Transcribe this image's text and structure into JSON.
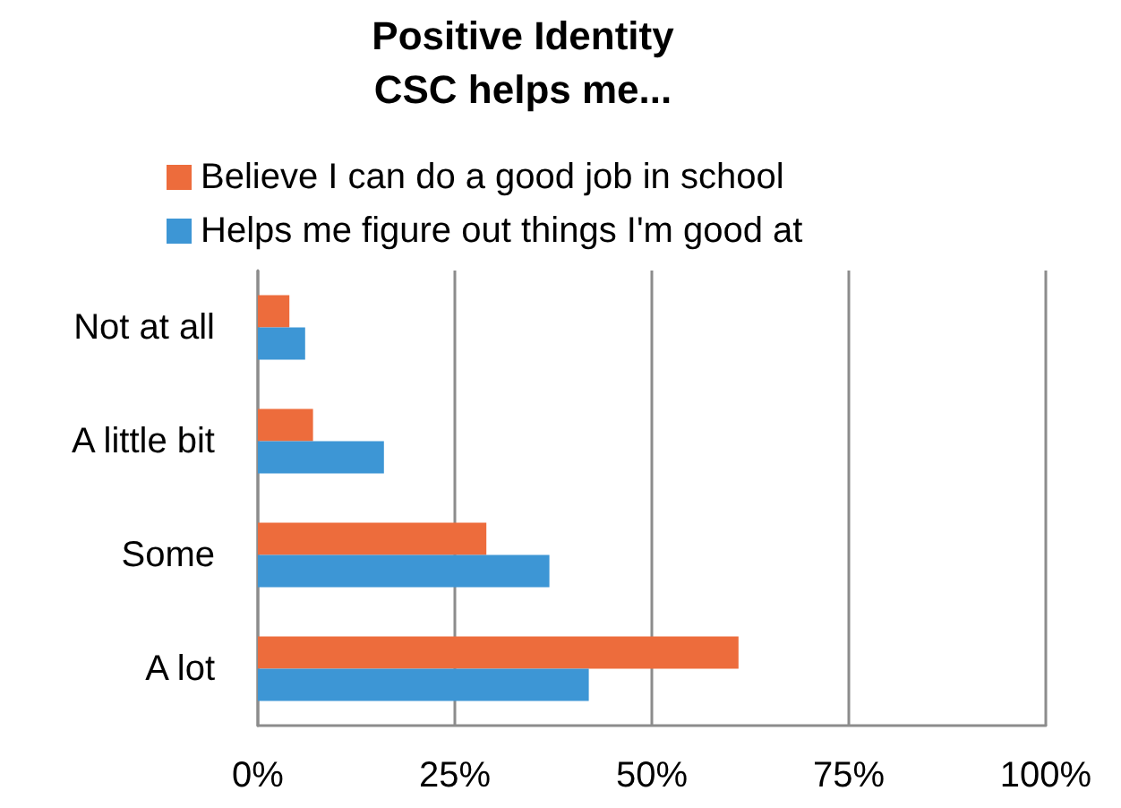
{
  "chart_data": {
    "type": "bar",
    "orientation": "horizontal",
    "title": "Positive Identity",
    "subtitle": "CSC helps me...",
    "categories": [
      "Not at all",
      "A little bit",
      "Some",
      "A lot"
    ],
    "series": [
      {
        "name": "Believe I can do a good job in school",
        "color": "#ed6c3c",
        "values": [
          4,
          7,
          29,
          61
        ]
      },
      {
        "name": "Helps me figure out things I'm good at",
        "color": "#3d96d5",
        "values": [
          6,
          16,
          37,
          42
        ]
      }
    ],
    "xlim": [
      0,
      100
    ],
    "xticks": [
      {
        "value": 0,
        "label": "0%"
      },
      {
        "value": 25,
        "label": "25%"
      },
      {
        "value": 50,
        "label": "50%"
      },
      {
        "value": 75,
        "label": "75%"
      },
      {
        "value": 100,
        "label": "100%"
      }
    ],
    "grid": "x",
    "legend": "top"
  }
}
